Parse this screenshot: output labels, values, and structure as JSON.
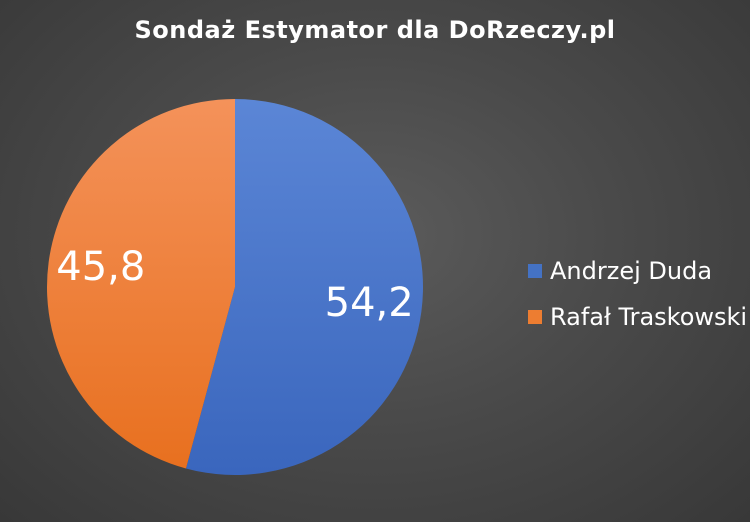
{
  "chart_data": {
    "type": "pie",
    "title": "Sondaż Estymator dla DoRzeczy.pl",
    "categories": [
      "Andrzej Duda",
      "Rafał Traskowski"
    ],
    "values": [
      54.2,
      45.8
    ],
    "value_labels": [
      "54,2",
      "45,8"
    ],
    "colors": [
      "#4472c4",
      "#ed7d31"
    ],
    "legend_position": "right"
  },
  "legend": {
    "items": [
      {
        "label": "Andrzej Duda",
        "color": "#4472c4"
      },
      {
        "label": "Rafał Traskowski",
        "color": "#ed7d31"
      }
    ]
  }
}
